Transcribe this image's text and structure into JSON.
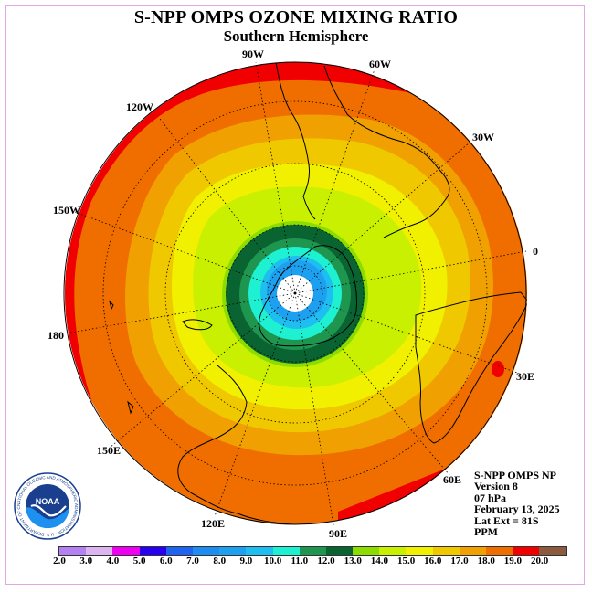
{
  "title": "S-NPP OMPS OZONE MIXING RATIO",
  "subtitle": "Southern Hemisphere",
  "longitude_labels": [
    "90W",
    "60W",
    "120W",
    "30W",
    "150W",
    "0",
    "180",
    "30E",
    "150E",
    "60E",
    "120E",
    "90E"
  ],
  "info": {
    "instrument": "S-NPP OMPS NP",
    "version": "Version 8",
    "level": "07 hPa",
    "date": "February 13, 2025",
    "lat_ext": "Lat Ext = 81S",
    "units": "PPM"
  },
  "logo": {
    "text": "NOAA",
    "ring_text": "NATIONAL OCEANIC AND ATMOSPHERIC ADMINISTRATION · U.S. DEPARTMENT OF COMMERCE"
  },
  "colorbar": {
    "colors": [
      "#b482f0",
      "#dcb4f0",
      "#f000f0",
      "#2800f0",
      "#1e64f0",
      "#1e8cf0",
      "#1ea0f0",
      "#1ebef0",
      "#1ef0d2",
      "#1e9650",
      "#0a6432",
      "#8cdc00",
      "#c8f000",
      "#f0f000",
      "#f0c800",
      "#f0a000",
      "#f06e00",
      "#f00000",
      "#8c5a3c"
    ],
    "ticks": [
      "2.0",
      "3.0",
      "4.0",
      "5.0",
      "6.0",
      "7.0",
      "8.0",
      "9.0",
      "10.0",
      "11.0",
      "12.0",
      "13.0",
      "14.0",
      "15.0",
      "16.0",
      "17.0",
      "18.0",
      "19.0",
      "20.0"
    ]
  }
}
